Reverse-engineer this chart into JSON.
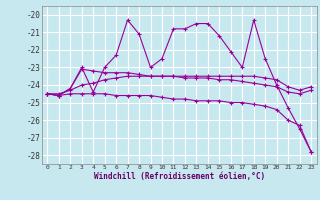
{
  "xlabel": "Windchill (Refroidissement éolien,°C)",
  "x": [
    0,
    1,
    2,
    3,
    4,
    5,
    6,
    7,
    8,
    9,
    10,
    11,
    12,
    13,
    14,
    15,
    16,
    17,
    18,
    19,
    20,
    21,
    22,
    23
  ],
  "line1": [
    -24.5,
    -24.6,
    -24.2,
    -23.0,
    -24.4,
    -23.0,
    -22.3,
    -20.3,
    -21.1,
    -23.0,
    -22.5,
    -20.8,
    -20.8,
    -20.5,
    -20.5,
    -21.2,
    -22.1,
    -23.0,
    -20.3,
    -22.5,
    -24.0,
    -25.3,
    -26.5,
    -27.8
  ],
  "line2": [
    -24.5,
    -24.6,
    -24.2,
    -23.1,
    -23.2,
    -23.3,
    -23.3,
    -23.3,
    -23.4,
    -23.5,
    -23.5,
    -23.5,
    -23.5,
    -23.5,
    -23.5,
    -23.5,
    -23.5,
    -23.5,
    -23.5,
    -23.6,
    -23.7,
    -24.1,
    -24.3,
    -24.1
  ],
  "line3": [
    -24.5,
    -24.5,
    -24.3,
    -24.0,
    -23.9,
    -23.7,
    -23.6,
    -23.5,
    -23.5,
    -23.5,
    -23.5,
    -23.5,
    -23.6,
    -23.6,
    -23.6,
    -23.7,
    -23.7,
    -23.8,
    -23.9,
    -24.0,
    -24.1,
    -24.4,
    -24.5,
    -24.3
  ],
  "line4": [
    -24.5,
    -24.6,
    -24.5,
    -24.5,
    -24.5,
    -24.5,
    -24.6,
    -24.6,
    -24.6,
    -24.6,
    -24.7,
    -24.8,
    -24.8,
    -24.9,
    -24.9,
    -24.9,
    -25.0,
    -25.0,
    -25.1,
    -25.2,
    -25.4,
    -26.0,
    -26.3,
    -27.8
  ],
  "line_color": "#990099",
  "bg_color": "#c8e8f0",
  "grid_color": "#ffffff",
  "ylim": [
    -28.5,
    -19.5
  ],
  "yticks": [
    -28,
    -27,
    -26,
    -25,
    -24,
    -23,
    -22,
    -21,
    -20
  ],
  "xticks": [
    0,
    1,
    2,
    3,
    4,
    5,
    6,
    7,
    8,
    9,
    10,
    11,
    12,
    13,
    14,
    15,
    16,
    17,
    18,
    19,
    20,
    21,
    22,
    23
  ]
}
